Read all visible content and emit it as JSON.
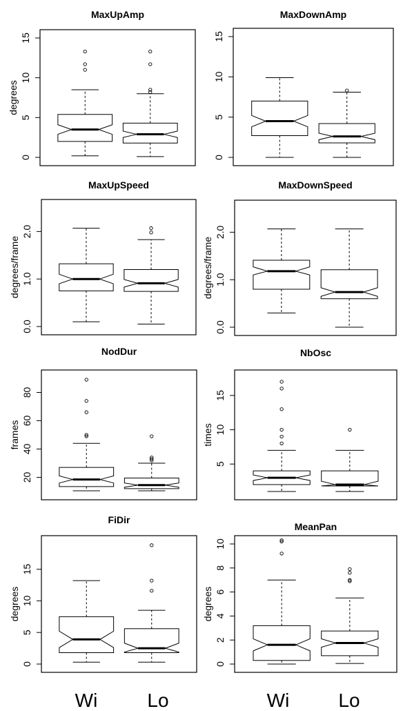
{
  "chart_data": [
    {
      "type": "boxplot",
      "title": "MaxUpAmp",
      "ylabel": "degrees",
      "ylim": [
        0,
        15
      ],
      "yticks": [
        "0",
        "5",
        "10",
        "15"
      ],
      "tick_values": [
        0,
        5,
        10,
        15
      ],
      "categories": [
        "Wi",
        "Lo"
      ],
      "boxes": [
        {
          "min": 0.2,
          "q1": 2.0,
          "median": 3.5,
          "q3": 5.4,
          "max": 8.5,
          "notch_low": 2.9,
          "notch_high": 4.1,
          "outliers": [
            11.0,
            11.7,
            13.3
          ]
        },
        {
          "min": 0.1,
          "q1": 1.8,
          "median": 2.9,
          "q3": 4.3,
          "max": 8.0,
          "notch_low": 2.5,
          "notch_high": 3.3,
          "outliers": [
            8.2,
            8.5,
            11.7,
            13.3
          ]
        }
      ]
    },
    {
      "type": "boxplot",
      "title": "MaxDownAmp",
      "ylabel": "",
      "ylim": [
        0,
        15
      ],
      "yticks": [
        "0",
        "5",
        "10",
        "15"
      ],
      "tick_values": [
        0,
        5,
        10,
        15
      ],
      "categories": [
        "Wi",
        "Lo"
      ],
      "boxes": [
        {
          "min": 0.0,
          "q1": 2.7,
          "median": 4.5,
          "q3": 7.0,
          "max": 9.9,
          "notch_low": 3.8,
          "notch_high": 5.2,
          "outliers": []
        },
        {
          "min": 0.0,
          "q1": 1.8,
          "median": 2.6,
          "q3": 4.2,
          "max": 8.1,
          "notch_low": 2.2,
          "notch_high": 3.0,
          "outliers": [
            8.3
          ]
        }
      ]
    },
    {
      "type": "boxplot",
      "title": "MaxUpSpeed",
      "ylabel": "degrees/frame",
      "ylim": [
        0,
        2.5
      ],
      "yticks": [
        "0.0",
        "1.0",
        "2.0"
      ],
      "tick_values": [
        0,
        1,
        2
      ],
      "categories": [
        "Wi",
        "Lo"
      ],
      "boxes": [
        {
          "min": 0.1,
          "q1": 0.75,
          "median": 1.0,
          "q3": 1.32,
          "max": 2.07,
          "notch_low": 0.9,
          "notch_high": 1.1,
          "outliers": []
        },
        {
          "min": 0.05,
          "q1": 0.74,
          "median": 0.91,
          "q3": 1.2,
          "max": 1.83,
          "notch_low": 0.83,
          "notch_high": 0.99,
          "outliers": [
            1.98,
            2.07
          ]
        }
      ]
    },
    {
      "type": "boxplot",
      "title": "MaxDownSpeed",
      "ylabel": "degrees/frame",
      "ylim": [
        0,
        2.5
      ],
      "yticks": [
        "0.0",
        "1.0",
        "2.0"
      ],
      "tick_values": [
        0,
        1,
        2
      ],
      "categories": [
        "Wi",
        "Lo"
      ],
      "boxes": [
        {
          "min": 0.3,
          "q1": 0.8,
          "median": 1.18,
          "q3": 1.41,
          "max": 2.07,
          "notch_low": 1.1,
          "notch_high": 1.27,
          "outliers": []
        },
        {
          "min": 0.0,
          "q1": 0.6,
          "median": 0.74,
          "q3": 1.21,
          "max": 2.07,
          "notch_low": 0.65,
          "notch_high": 0.83,
          "outliers": []
        }
      ]
    },
    {
      "type": "boxplot",
      "title": "NodDur",
      "ylabel": "frames",
      "ylim": [
        10,
        90
      ],
      "yticks": [
        "20",
        "40",
        "60",
        "80"
      ],
      "tick_values": [
        20,
        40,
        60,
        80
      ],
      "categories": [
        "Wi",
        "Lo"
      ],
      "boxes": [
        {
          "min": 10.5,
          "q1": 13.5,
          "median": 18.5,
          "q3": 27.0,
          "max": 44.0,
          "notch_low": 16.0,
          "notch_high": 21.0,
          "outliers": [
            49.0,
            50.0,
            66.0,
            74.0,
            89.0
          ]
        },
        {
          "min": 10.5,
          "q1": 12.0,
          "median": 14.5,
          "q3": 19.5,
          "max": 30.0,
          "notch_low": 13.0,
          "notch_high": 16.0,
          "outliers": [
            32.0,
            33.0,
            34.0,
            49.0
          ]
        }
      ]
    },
    {
      "type": "boxplot",
      "title": "NbOsc",
      "ylabel": "times",
      "ylim": [
        1,
        17.5
      ],
      "yticks": [
        "5",
        "10",
        "15"
      ],
      "tick_values": [
        5,
        10,
        15
      ],
      "categories": [
        "Wi",
        "Lo"
      ],
      "boxes": [
        {
          "min": 1.0,
          "q1": 2.0,
          "median": 3.0,
          "q3": 4.0,
          "max": 7.0,
          "notch_low": 2.6,
          "notch_high": 3.4,
          "outliers": [
            8.0,
            9.0,
            10.0,
            13.0,
            16.0,
            17.0
          ]
        },
        {
          "min": 1.0,
          "q1": 1.8,
          "median": 2.0,
          "q3": 4.0,
          "max": 7.0,
          "notch_low": 1.5,
          "notch_high": 2.5,
          "outliers": [
            10.0
          ]
        }
      ]
    },
    {
      "type": "boxplot",
      "title": "FiDir",
      "ylabel": "degrees",
      "ylim": [
        0,
        19
      ],
      "yticks": [
        "0",
        "5",
        "10",
        "15"
      ],
      "tick_values": [
        0,
        5,
        10,
        15
      ],
      "categories": [
        "Wi",
        "Lo"
      ],
      "boxes": [
        {
          "min": 0.3,
          "q1": 1.8,
          "median": 3.9,
          "q3": 7.5,
          "max": 13.2,
          "notch_low": 2.6,
          "notch_high": 5.2,
          "outliers": []
        },
        {
          "min": 0.3,
          "q1": 1.8,
          "median": 2.5,
          "q3": 5.6,
          "max": 8.5,
          "notch_low": 1.9,
          "notch_high": 3.3,
          "outliers": [
            11.6,
            13.2,
            18.8
          ]
        }
      ]
    },
    {
      "type": "boxplot",
      "title": "MeanPan",
      "ylabel": "degrees",
      "ylim": [
        0,
        10
      ],
      "yticks": [
        "0",
        "2",
        "4",
        "6",
        "8",
        "10"
      ],
      "tick_values": [
        0,
        2,
        4,
        6,
        8,
        10
      ],
      "categories": [
        "Wi",
        "Lo"
      ],
      "boxes": [
        {
          "min": 0.0,
          "q1": 0.3,
          "median": 1.6,
          "q3": 3.2,
          "max": 7.0,
          "notch_low": 1.1,
          "notch_high": 2.1,
          "outliers": [
            9.2,
            10.2,
            10.3
          ]
        },
        {
          "min": 0.05,
          "q1": 0.7,
          "median": 1.75,
          "q3": 2.75,
          "max": 5.5,
          "notch_low": 1.4,
          "notch_high": 2.1,
          "outliers": [
            6.9,
            7.0,
            7.6,
            7.9
          ]
        }
      ]
    }
  ],
  "group_labels": [
    "Wi",
    "Lo",
    "Wi",
    "Lo"
  ]
}
